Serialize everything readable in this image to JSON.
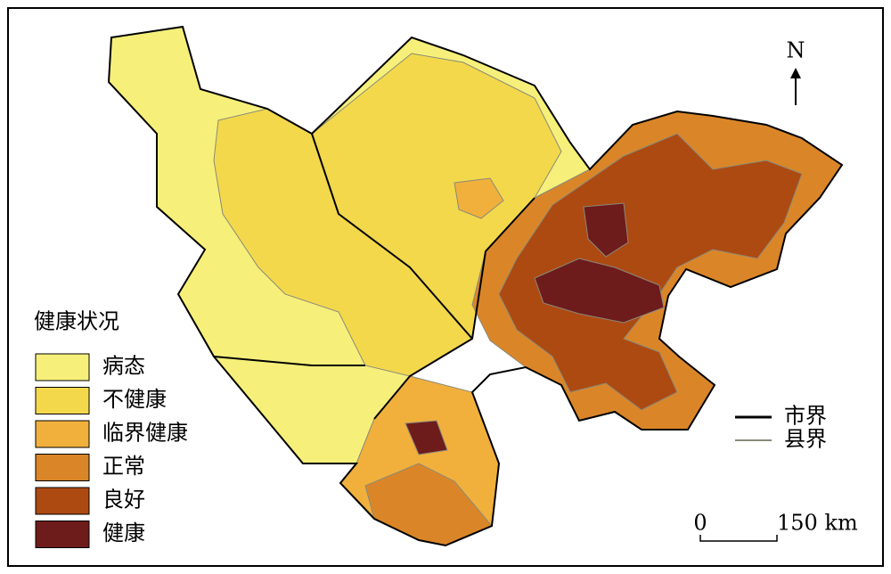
{
  "legend": {
    "title": "健康状况",
    "items": [
      {
        "label": "病态",
        "color": "#f6f07a"
      },
      {
        "label": "不健康",
        "color": "#f3d84c"
      },
      {
        "label": "临界健康",
        "color": "#f1b03c"
      },
      {
        "label": "正常",
        "color": "#da8628"
      },
      {
        "label": "良好",
        "color": "#ad4a12"
      },
      {
        "label": "健康",
        "color": "#6e1b1b"
      }
    ]
  },
  "north": "N",
  "boundaries": [
    {
      "label": "市界",
      "color": "#000000"
    },
    {
      "label": "县界",
      "color": "#8a8a7a"
    }
  ],
  "scale": {
    "start": "0",
    "end": "150 km"
  }
}
